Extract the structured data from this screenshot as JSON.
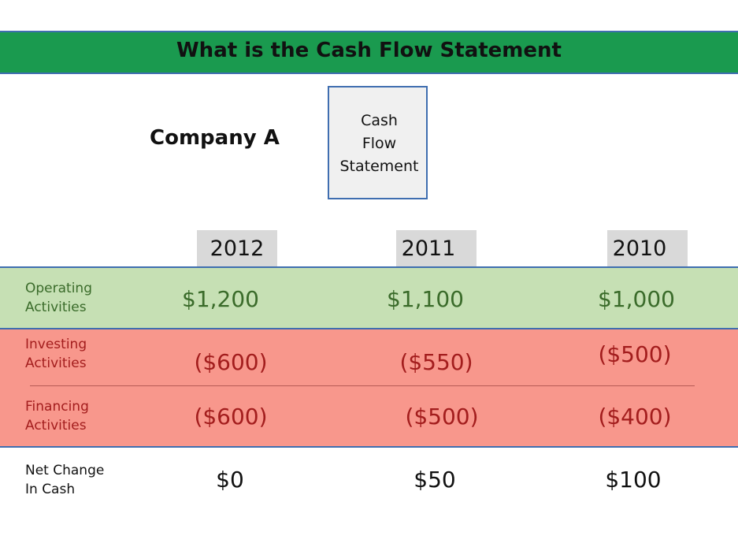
{
  "title": "What is the Cash Flow Statement",
  "company": "Company A",
  "box": {
    "lines": [
      "Cash",
      "Flow",
      "Statement"
    ]
  },
  "years": [
    "2012",
    "2011",
    "2010"
  ],
  "rows": [
    {
      "label_line1": "Operating",
      "label_line2": "Activities",
      "values": [
        "$1,200",
        "$1,100",
        "$1,000"
      ]
    },
    {
      "label_line1": "Investing",
      "label_line2": "Activities",
      "values": [
        "($600)",
        "($550)",
        "($500)"
      ]
    },
    {
      "label_line1": "Financing",
      "label_line2": "Activities",
      "values": [
        "($600)",
        "($500)",
        "($400)"
      ]
    },
    {
      "label_line1": "Net Change",
      "label_line2": "In Cash",
      "values": [
        "$0",
        "$50",
        "$100"
      ]
    }
  ],
  "colors": {
    "title_bar": "#1a9a4f",
    "operating_band": "#c6e0b4",
    "negative_band": "#f8978c",
    "border": "#3f6eb0"
  }
}
